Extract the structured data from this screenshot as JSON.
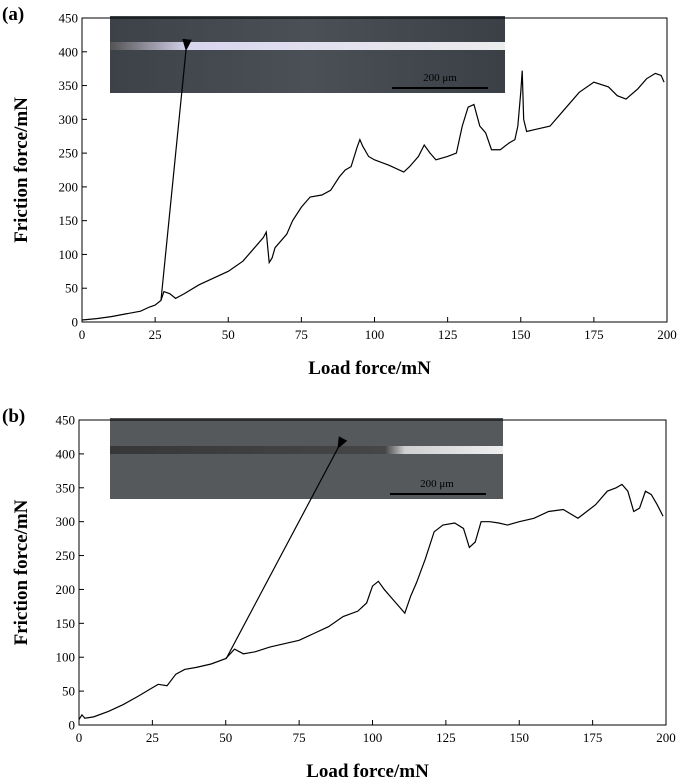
{
  "chart_data": [
    {
      "type": "line",
      "panel_label": "(a)",
      "x_label": "Load force/mN",
      "y_label": "Friction force/mN",
      "inset_label": "200 μm",
      "color": "#000000",
      "xlim": [
        0,
        200
      ],
      "xticks": [
        0,
        25,
        50,
        75,
        100,
        125,
        150,
        175,
        200
      ],
      "ylim": [
        0,
        450
      ],
      "yticks": [
        0,
        50,
        100,
        150,
        200,
        250,
        300,
        350,
        400,
        450
      ],
      "x": [
        0,
        5,
        10,
        15,
        20,
        23,
        25,
        27,
        28,
        30,
        32,
        35,
        40,
        45,
        50,
        55,
        58,
        60,
        62,
        63,
        64,
        65,
        66,
        70,
        72,
        75,
        78,
        82,
        85,
        88,
        90,
        92,
        94,
        95,
        96,
        98,
        100,
        105,
        110,
        112,
        115,
        117,
        119,
        121,
        125,
        128,
        130,
        132,
        134,
        136,
        138,
        140,
        143,
        146,
        148,
        149,
        150,
        150.5,
        151,
        152,
        155,
        160,
        165,
        170,
        175,
        180,
        183,
        186,
        190,
        193,
        196,
        198,
        199
      ],
      "values": [
        3,
        5,
        8,
        12,
        16,
        22,
        25,
        32,
        45,
        42,
        35,
        42,
        55,
        65,
        75,
        90,
        105,
        115,
        125,
        133,
        88,
        95,
        110,
        130,
        150,
        170,
        185,
        188,
        195,
        215,
        225,
        230,
        258,
        270,
        260,
        245,
        240,
        232,
        222,
        230,
        245,
        262,
        250,
        240,
        245,
        250,
        290,
        318,
        322,
        290,
        280,
        255,
        255,
        265,
        270,
        290,
        340,
        372,
        300,
        282,
        285,
        290,
        315,
        340,
        355,
        348,
        335,
        330,
        345,
        360,
        368,
        365,
        355
      ]
    },
    {
      "type": "line",
      "panel_label": "(b)",
      "x_label": "Load force/mN",
      "y_label": "Friction force/mN",
      "inset_label": "200 μm",
      "color": "#000000",
      "xlim": [
        0,
        200
      ],
      "xticks": [
        0,
        25,
        50,
        75,
        100,
        125,
        150,
        175,
        200
      ],
      "ylim": [
        0,
        450
      ],
      "yticks": [
        0,
        50,
        100,
        150,
        200,
        250,
        300,
        350,
        400,
        450
      ],
      "x": [
        0,
        1,
        2,
        5,
        10,
        15,
        20,
        25,
        27,
        30,
        33,
        36,
        40,
        45,
        50,
        53,
        56,
        60,
        65,
        70,
        75,
        80,
        85,
        90,
        95,
        98,
        100,
        102,
        104,
        106,
        108,
        110,
        111,
        113,
        115,
        118,
        121,
        124,
        128,
        131,
        133,
        135,
        137,
        140,
        143,
        146,
        150,
        155,
        160,
        165,
        170,
        173,
        176,
        180,
        183,
        185,
        187,
        189,
        191,
        193,
        195,
        197,
        199
      ],
      "values": [
        8,
        15,
        10,
        12,
        20,
        30,
        42,
        55,
        60,
        58,
        75,
        82,
        85,
        90,
        98,
        112,
        105,
        108,
        115,
        120,
        125,
        135,
        145,
        160,
        168,
        180,
        205,
        212,
        200,
        190,
        180,
        170,
        165,
        190,
        210,
        245,
        285,
        295,
        298,
        290,
        262,
        270,
        300,
        300,
        298,
        295,
        300,
        305,
        315,
        318,
        305,
        315,
        325,
        345,
        350,
        355,
        345,
        315,
        320,
        345,
        340,
        325,
        308
      ]
    }
  ]
}
